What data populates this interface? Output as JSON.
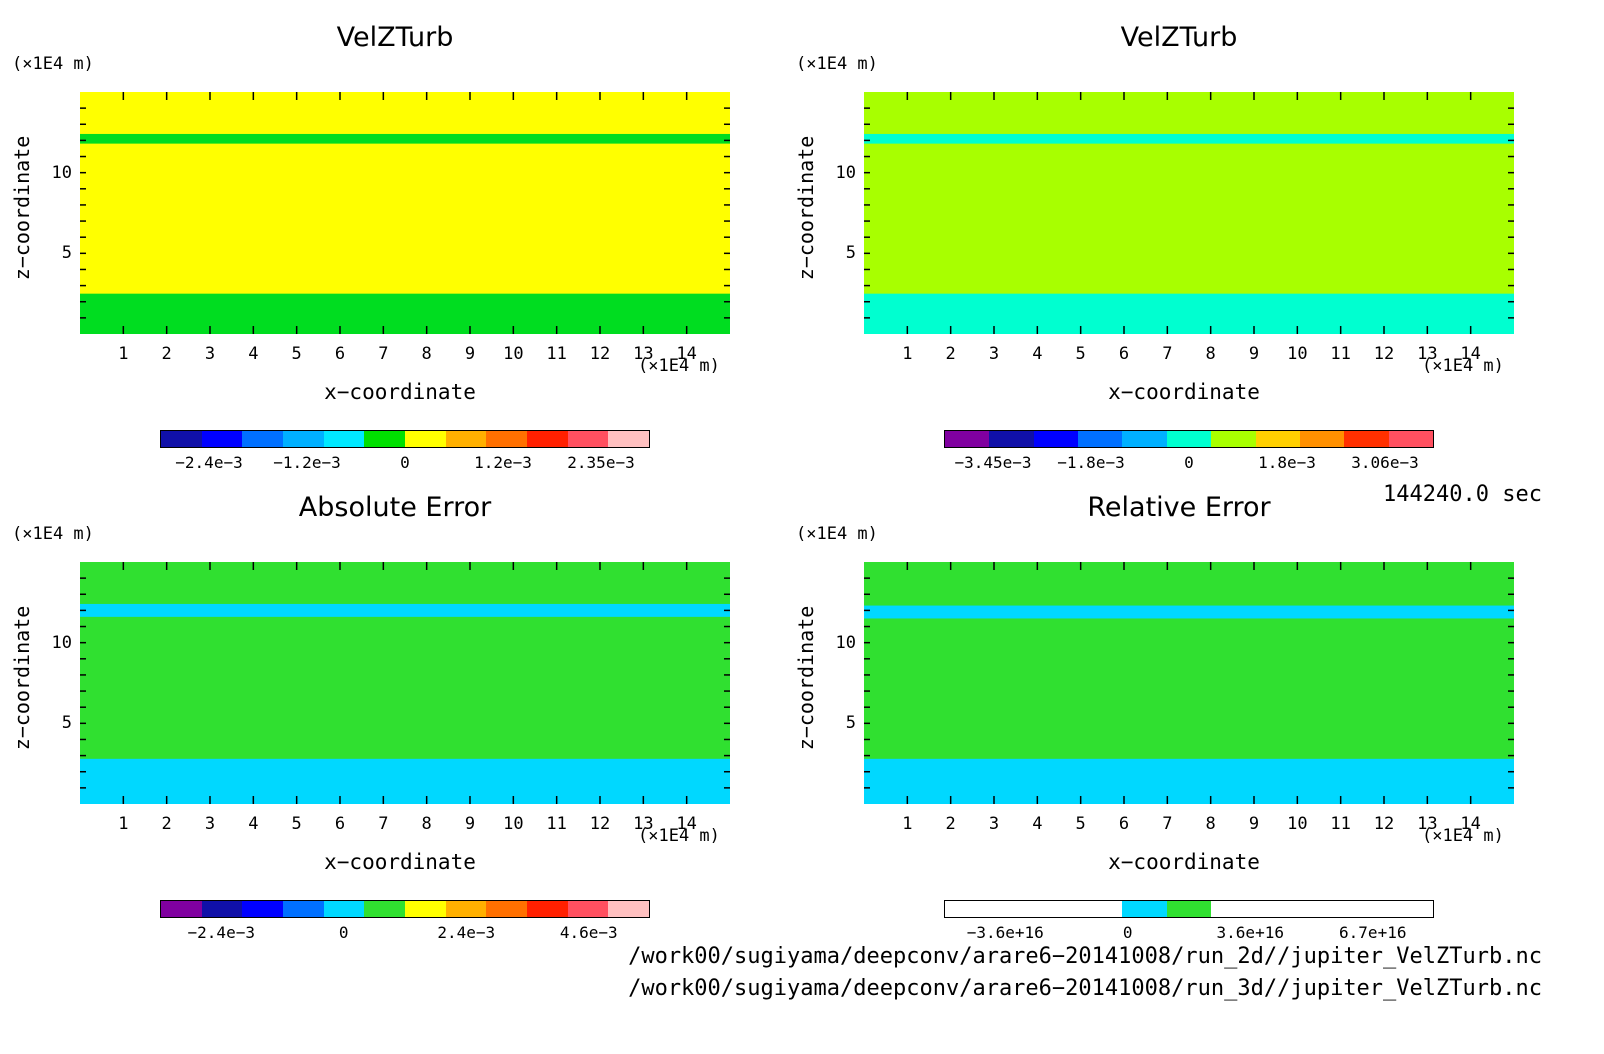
{
  "chart_data": [
    {
      "type": "heatmap",
      "title": "VelZTurb",
      "xlabel": "x−coordinate",
      "ylabel": "z−coordinate",
      "x_unit": "(×1E4 m)",
      "y_unit": "(×1E4 m)",
      "xlim": [
        0,
        15
      ],
      "ylim": [
        0,
        15
      ],
      "x_ticks": [
        "1",
        "2",
        "3",
        "4",
        "5",
        "6",
        "7",
        "8",
        "9",
        "10",
        "11",
        "12",
        "13",
        "14"
      ],
      "y_ticks": [
        "5",
        "10"
      ],
      "background_color": "#ffff00",
      "features": [
        {
          "type": "band",
          "z_min": 11.8,
          "z_max": 12.4,
          "color": "#00dd20"
        },
        {
          "type": "band",
          "z_min": 0,
          "z_max": 2.5,
          "color": "#00dd20"
        }
      ],
      "colorbar_labels": [
        "−2.4e−3",
        "−1.2e−3",
        "0",
        "1.2e−3",
        "2.35e−3"
      ],
      "colorbar_colors": [
        "#1010a8",
        "#0000ff",
        "#0070ff",
        "#00b0ff",
        "#00e8ff",
        "#00e000",
        "#ffff00",
        "#ffb000",
        "#ff7000",
        "#ff2000",
        "#ff5060",
        "#ffc0c0"
      ]
    },
    {
      "type": "heatmap",
      "title": "VelZTurb",
      "xlabel": "x−coordinate",
      "ylabel": "z−coordinate",
      "x_unit": "(×1E4 m)",
      "y_unit": "(×1E4 m)",
      "xlim": [
        0,
        15
      ],
      "ylim": [
        0,
        15
      ],
      "x_ticks": [
        "1",
        "2",
        "3",
        "4",
        "5",
        "6",
        "7",
        "8",
        "9",
        "10",
        "11",
        "12",
        "13",
        "14"
      ],
      "y_ticks": [
        "5",
        "10"
      ],
      "background_color": "#a8ff00",
      "features": [
        {
          "type": "band",
          "z_min": 11.8,
          "z_max": 12.4,
          "color": "#00ffd0"
        },
        {
          "type": "band",
          "z_min": 0,
          "z_max": 2.5,
          "color": "#00ffd0"
        }
      ],
      "colorbar_labels": [
        "−3.45e−3",
        "−1.8e−3",
        "0",
        "1.8e−3",
        "3.06e−3"
      ],
      "colorbar_colors": [
        "#8000a0",
        "#1010a8",
        "#0000ff",
        "#0070ff",
        "#00b0ff",
        "#00ffd0",
        "#a8ff00",
        "#ffd000",
        "#ff9000",
        "#ff3000",
        "#ff5060"
      ]
    },
    {
      "type": "heatmap",
      "title": "Absolute Error",
      "xlabel": "x−coordinate",
      "ylabel": "z−coordinate",
      "x_unit": "(×1E4 m)",
      "y_unit": "(×1E4 m)",
      "xlim": [
        0,
        15
      ],
      "ylim": [
        0,
        15
      ],
      "x_ticks": [
        "1",
        "2",
        "3",
        "4",
        "5",
        "6",
        "7",
        "8",
        "9",
        "10",
        "11",
        "12",
        "13",
        "14"
      ],
      "y_ticks": [
        "5",
        "10"
      ],
      "background_color": "#30e030",
      "features": [
        {
          "type": "band",
          "z_min": 11.6,
          "z_max": 12.4,
          "color": "#00d8ff"
        },
        {
          "type": "band",
          "z_min": 0,
          "z_max": 2.8,
          "color": "#00d8ff"
        }
      ],
      "colorbar_labels": [
        "−2.4e−3",
        "0",
        "2.4e−3",
        "4.6e−3"
      ],
      "colorbar_colors": [
        "#8000a0",
        "#1010a8",
        "#0000ff",
        "#0070ff",
        "#00d8ff",
        "#30e030",
        "#ffff00",
        "#ffb000",
        "#ff7000",
        "#ff2000",
        "#ff5060",
        "#ffc0c0"
      ]
    },
    {
      "type": "heatmap",
      "title": "Relative Error",
      "xlabel": "x−coordinate",
      "ylabel": "z−coordinate",
      "x_unit": "(×1E4 m)",
      "y_unit": "(×1E4 m)",
      "xlim": [
        0,
        15
      ],
      "ylim": [
        0,
        15
      ],
      "x_ticks": [
        "1",
        "2",
        "3",
        "4",
        "5",
        "6",
        "7",
        "8",
        "9",
        "10",
        "11",
        "12",
        "13",
        "14"
      ],
      "y_ticks": [
        "5",
        "10"
      ],
      "background_color": "#30e030",
      "features": [
        {
          "type": "band",
          "z_min": 11.5,
          "z_max": 12.3,
          "color": "#00d8ff"
        },
        {
          "type": "band",
          "z_min": 0,
          "z_max": 2.8,
          "color": "#00d8ff"
        }
      ],
      "colorbar_labels": [
        "−3.6e+16",
        "0",
        "3.6e+16",
        "6.7e+16"
      ],
      "colorbar_colors": [
        "#ffffff",
        "#ffffff",
        "#ffffff",
        "#ffffff",
        "#00d8ff",
        "#30e030",
        "#ffffff",
        "#ffffff",
        "#ffffff",
        "#ffffff",
        "#ffffff"
      ]
    }
  ],
  "time_label": "144240.0 sec",
  "file_paths": [
    "/work00/sugiyama/deepconv/arare6−20141008/run_2d//jupiter_VelZTurb.nc",
    "/work00/sugiyama/deepconv/arare6−20141008/run_3d//jupiter_VelZTurb.nc"
  ]
}
